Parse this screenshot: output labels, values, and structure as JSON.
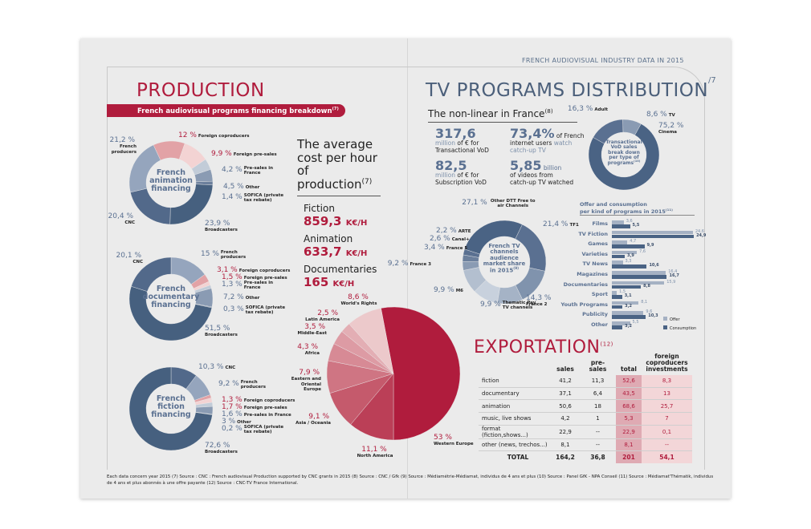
{
  "header": {
    "running_title": "FRENCH AUDIOVISUAL INDUSTRY DATA IN 2015",
    "page_number": "/7"
  },
  "colors": {
    "red": "#b01c3d",
    "navy": "#4a6384",
    "slate": "#7d90aa"
  },
  "production": {
    "title": "PRODUCTION",
    "banner": "French audiovisual programs financing breakdown",
    "banner_note": "(7)",
    "donuts": [
      {
        "center": [
          "French",
          "animation",
          "financing"
        ],
        "slices": [
          {
            "pct": "12 %",
            "name": "Foreign coproducers",
            "value": 12,
            "color": "#e2a2a6",
            "red": true
          },
          {
            "pct": "9,9 %",
            "name": "Foreign pre-sales",
            "value": 9.9,
            "color": "#f3d3d3",
            "red": true
          },
          {
            "pct": "4,2 %",
            "name": "Pre-sales in France",
            "value": 4.2,
            "color": "#c2ccd8"
          },
          {
            "pct": "4,5 %",
            "name": "Other",
            "value": 4.5,
            "color": "#8a9bb3"
          },
          {
            "pct": "1,4 %",
            "name": "SOFICA (private tax rebate)",
            "value": 1.4,
            "color": "#6b7f9c"
          },
          {
            "pct": "23,9 %",
            "name": "Broadcasters",
            "value": 23.9,
            "color": "#46607f"
          },
          {
            "pct": "20,4 %",
            "name": "CNC",
            "value": 20.4,
            "color": "#52698a"
          },
          {
            "pct": "21,2 %",
            "name": "French producers",
            "value": 21.2,
            "color": "#95a5bd"
          }
        ]
      },
      {
        "center": [
          "French",
          "documentary",
          "financing"
        ],
        "slices": [
          {
            "pct": "15 %",
            "name": "French producers",
            "value": 15,
            "color": "#95a5bd"
          },
          {
            "pct": "3,1 %",
            "name": "Foreign coproducers",
            "value": 3.1,
            "color": "#e2a2a6",
            "red": true
          },
          {
            "pct": "1,5 %",
            "name": "Foreign pre-sales",
            "value": 1.5,
            "color": "#f3d3d3",
            "red": true
          },
          {
            "pct": "1,3 %",
            "name": "Pre-sales in France",
            "value": 1.3,
            "color": "#c2ccd8"
          },
          {
            "pct": "7,2 %",
            "name": "Other",
            "value": 7.2,
            "color": "#8a9bb3"
          },
          {
            "pct": "0,3 %",
            "name": "SOFICA (private tax rebate)",
            "value": 0.3,
            "color": "#6b7f9c"
          },
          {
            "pct": "51,5 %",
            "name": "Broadcasters",
            "value": 51.5,
            "color": "#46607f"
          },
          {
            "pct": "20,1 %",
            "name": "CNC",
            "value": 20.1,
            "color": "#52698a"
          }
        ]
      },
      {
        "center": [
          "French",
          "fiction",
          "financing"
        ],
        "slices": [
          {
            "pct": "10,3 %",
            "name": "CNC",
            "value": 10.3,
            "color": "#52698a"
          },
          {
            "pct": "9,2 %",
            "name": "French producers",
            "value": 9.2,
            "color": "#95a5bd"
          },
          {
            "pct": "1,3 %",
            "name": "Foreign coproducers",
            "value": 1.3,
            "color": "#e2a2a6",
            "red": true
          },
          {
            "pct": "1,7 %",
            "name": "Foreign pre-sales",
            "value": 1.7,
            "color": "#f3d3d3",
            "red": true
          },
          {
            "pct": "1,6 %",
            "name": "Pre-sales in France",
            "value": 1.6,
            "color": "#c2ccd8"
          },
          {
            "pct": "3 %",
            "name": "Other",
            "value": 3,
            "color": "#8a9bb3"
          },
          {
            "pct": "0,2 %",
            "name": "SOFICA (private tax rebate)",
            "value": 0.2,
            "color": "#6b7f9c"
          },
          {
            "pct": "72,6 %",
            "name": "Broadcasters",
            "value": 72.6,
            "color": "#46607f"
          }
        ]
      }
    ],
    "cost": {
      "heading": [
        "The average",
        "cost per hour",
        "of production"
      ],
      "note": "(7)",
      "unit": "K€/H",
      "items": [
        {
          "label": "Fiction",
          "value": "859,3"
        },
        {
          "label": "Animation",
          "value": "633,7"
        },
        {
          "label": "Documentaries",
          "value": "165"
        }
      ]
    },
    "export_pie": {
      "slices": [
        {
          "pct": "53 %",
          "name": "Western Europe",
          "value": 53,
          "color": "#b01c3d"
        },
        {
          "pct": "11,1 %",
          "name": "North America",
          "value": 11.1,
          "color": "#bb3f57"
        },
        {
          "pct": "9,1 %",
          "name": "Asia / Oceania",
          "value": 9.1,
          "color": "#c55a6c"
        },
        {
          "pct": "7,9 %",
          "name": "Eastern and Oriental Europe",
          "value": 7.9,
          "color": "#cf7583"
        },
        {
          "pct": "4,3 %",
          "name": "Africa",
          "value": 4.3,
          "color": "#d78a95"
        },
        {
          "pct": "3,5 %",
          "name": "Middle-East",
          "value": 3.5,
          "color": "#dd9ba4"
        },
        {
          "pct": "2,5 %",
          "name": "Latin America",
          "value": 2.5,
          "color": "#e3aeb4"
        },
        {
          "pct": "8,6 %",
          "name": "World's Rights",
          "value": 8.6,
          "color": "#ecc9cb"
        }
      ]
    }
  },
  "tv": {
    "title": "TV PROGRAMS DISTRIBUTION",
    "nonlinear": {
      "heading": "The non-linear in France",
      "note": "(8)",
      "stats": [
        {
          "big": "317,6",
          "l1a": "million",
          "l1b": " of € for",
          "l2": "Transactional VoD"
        },
        {
          "big": "73,4%",
          "inline": " of French",
          "l1a": "internet users ",
          "l1b": "watch",
          "l2": "catch-up TV"
        },
        {
          "big": "82,5",
          "l1a": "million",
          "l1b": " of € for",
          "l2": "Subscription VoD"
        },
        {
          "big": "5,85",
          "inline": " billion",
          "l1a": "",
          "l1b": "of videos from",
          "l2": "catch-up TV watched"
        }
      ]
    },
    "vod": {
      "center": [
        "Transactional",
        "VoD sales",
        "break down",
        "per type of",
        "programs"
      ],
      "note": "(10)",
      "slices": [
        {
          "pct": "75,2 %",
          "name": "Cinema",
          "value": 75.2,
          "color": "#4a6384"
        },
        {
          "pct": "16,3 %",
          "name": "Adult",
          "value": 16.3,
          "color": "#5a7091"
        },
        {
          "pct": "8,6 %",
          "name": "TV",
          "value": 8.6,
          "color": "#8a9bb3"
        }
      ]
    },
    "channels": {
      "center": [
        "French TV",
        "channels",
        "audience",
        "market share",
        "in 2015"
      ],
      "note": "(9)",
      "slices": [
        {
          "pct": "27,1 %",
          "name": "Other DTT Free to air Channels",
          "value": 27.1,
          "color": "#4a6384"
        },
        {
          "pct": "21,4 %",
          "name": "TF1",
          "value": 21.4,
          "color": "#5a7091"
        },
        {
          "pct": "14,3 %",
          "name": "France 2",
          "value": 14.3,
          "color": "#8093ad"
        },
        {
          "pct": "9,9 %",
          "name": "Thematic Pay TV channels",
          "value": 9.9,
          "color": "#a5b3c6"
        },
        {
          "pct": "9,9 %",
          "name": "M6",
          "value": 9.9,
          "color": "#c8d1dd"
        },
        {
          "pct": "9,2 %",
          "name": "France 3",
          "value": 9.2,
          "color": "#b3bfcf"
        },
        {
          "pct": "3,4 %",
          "name": "France 5",
          "value": 3.4,
          "color": "#8a9bb3"
        },
        {
          "pct": "2,6 %",
          "name": "Canal+",
          "value": 2.6,
          "color": "#6b7f9c"
        },
        {
          "pct": "2,2 %",
          "name": "ARTE",
          "value": 2.2,
          "color": "#5a7091"
        }
      ]
    },
    "offer": {
      "title": [
        "Offer and consumption",
        "per kind of programs in 2015"
      ],
      "note": "(11)",
      "legend": [
        {
          "name": "Offer",
          "color": "#a5b1c3"
        },
        {
          "name": "Consumption",
          "color": "#4a6384"
        }
      ],
      "chart_data": {
        "type": "bar",
        "orientation": "horizontal",
        "categories": [
          "Films",
          "TV Fiction",
          "Games",
          "Varieties",
          "TV News",
          "Magazines",
          "Documentaries",
          "Sport",
          "Youth Programs",
          "Publicity",
          "Other"
        ],
        "series": [
          {
            "name": "Offer",
            "values": [
              3.6,
              24.6,
              4.7,
              7.6,
              3.3,
              16.4,
              15.9,
              1.5,
              8.1,
              9.6,
              5.5
            ],
            "labels": [
              "3,6",
              "24,6",
              "4,7",
              "7,6",
              "3,3",
              "16,4",
              "15,9",
              "1,5",
              "8,1",
              "9,6",
              "5,5"
            ]
          },
          {
            "name": "Consumption",
            "values": [
              5.5,
              24.9,
              9.9,
              3.9,
              10.6,
              16.7,
              8.8,
              3.1,
              3.2,
              10.3,
              3.2
            ],
            "labels": [
              "5,5",
              "24,9",
              "9,9",
              "3,9",
              "10,6",
              "16,7",
              "8,8",
              "3,1",
              "3,2",
              "10,3",
              "3,2"
            ]
          }
        ]
      }
    }
  },
  "export": {
    "title": "EXPORTATION",
    "note": "(12)",
    "columns": [
      "",
      "sales",
      "pre-sales",
      "total",
      "foreign coproducers investments"
    ],
    "rows": [
      [
        "fiction",
        "41,2",
        "11,3",
        "52,6",
        "8,3"
      ],
      [
        "documentary",
        "37,1",
        "6,4",
        "43,5",
        "13"
      ],
      [
        "animation",
        "50,6",
        "18",
        "68,6",
        "25,7"
      ],
      [
        "music, live shows",
        "4,2",
        "1",
        "5,3",
        "7"
      ],
      [
        "format (fiction,shows...)",
        "22,9",
        "--",
        "22,9",
        "0,1"
      ],
      [
        "other (news, trechos...)",
        "8,1",
        "--",
        "8,1",
        "--"
      ]
    ],
    "total": [
      "TOTAL",
      "164,2",
      "36,8",
      "201",
      "54,1"
    ]
  },
  "footnote": "Each data concern year 2015 (7) Source : CNC : French audiovisual Production supported by CNC grants in 2015 (8) Source : CNC / Gfk (9) Source : Médiamétrie-Médiamat, individus de 4 ans et plus (10) Source : Panel GfK - NPA Conseil (11) Source : Médiamat'Thématik, individus de 4 ans et plus abonnés à une offre payante (12) Source : CNC-TV France International."
}
